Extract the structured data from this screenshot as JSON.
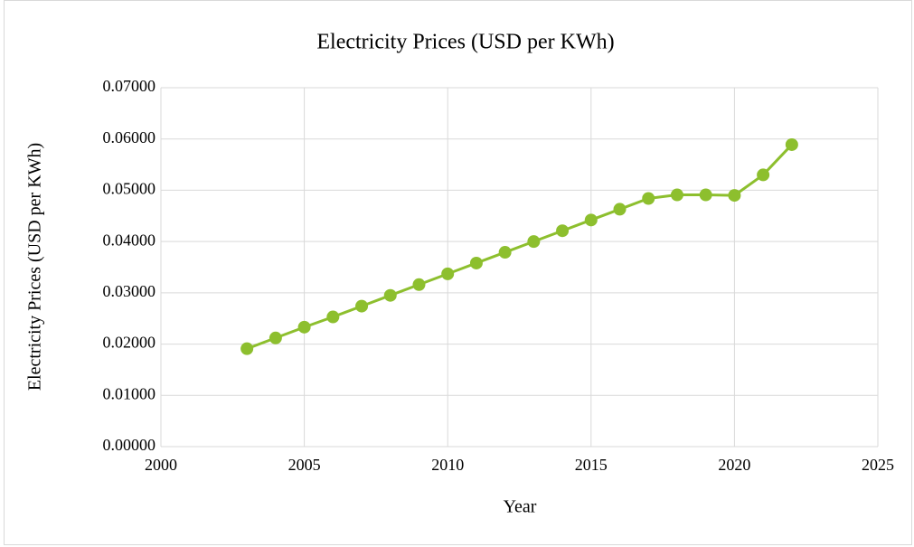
{
  "chart_data": {
    "type": "line",
    "title": "Electricity Prices (USD per KWh)",
    "xlabel": "Year",
    "ylabel": "Electricity Prices (USD per KWh)",
    "x": [
      2003,
      2004,
      2005,
      2006,
      2007,
      2008,
      2009,
      2010,
      2011,
      2012,
      2013,
      2014,
      2015,
      2016,
      2017,
      2018,
      2019,
      2020,
      2021,
      2022
    ],
    "series": [
      {
        "name": "Electricity Prices (USD per KWh)",
        "color": "#8dbf2e",
        "values": [
          0.0191,
          0.0212,
          0.0233,
          0.0253,
          0.0274,
          0.0295,
          0.0316,
          0.0337,
          0.0358,
          0.0379,
          0.04,
          0.0421,
          0.0442,
          0.0463,
          0.0484,
          0.0491,
          0.0491,
          0.049,
          0.053,
          0.0589
        ]
      }
    ],
    "xlim": [
      2000,
      2025
    ],
    "xticks": [
      2000,
      2005,
      2010,
      2015,
      2020,
      2025
    ],
    "ylim": [
      0,
      0.07
    ],
    "yticks": [
      {
        "value": 0,
        "label": "0.00000"
      },
      {
        "value": 0.01,
        "label": "0.01000"
      },
      {
        "value": 0.02,
        "label": "0.02000"
      },
      {
        "value": 0.03,
        "label": "0.03000"
      },
      {
        "value": 0.04,
        "label": "0.04000"
      },
      {
        "value": 0.05,
        "label": "0.05000"
      },
      {
        "value": 0.06,
        "label": "0.06000"
      },
      {
        "value": 0.07,
        "label": "0.07000"
      }
    ],
    "grid": true
  }
}
